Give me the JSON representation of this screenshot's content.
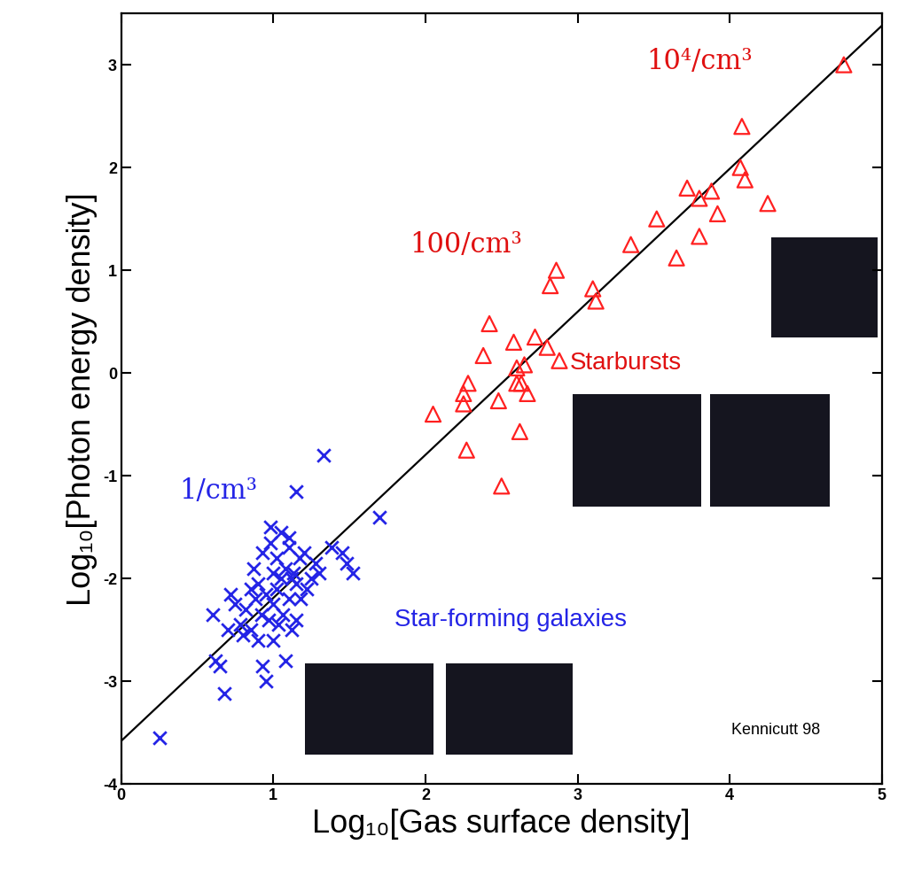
{
  "chart_data": {
    "type": "scatter",
    "x_label": "Log₁₀[Gas surface density]",
    "y_label": "Log₁₀[Photon energy density]",
    "xlim": [
      0,
      5
    ],
    "ylim": [
      -4,
      3.5
    ],
    "xticks": [
      0,
      1,
      2,
      3,
      4,
      5
    ],
    "yticks": [
      -4,
      -3,
      -2,
      -1,
      0,
      1,
      2,
      3
    ],
    "grid": false,
    "series": [
      {
        "name": "Star-forming galaxies",
        "color": "#2424e6",
        "marker": "x",
        "x": [
          0.25,
          0.6,
          0.62,
          0.65,
          0.68,
          0.7,
          0.72,
          0.75,
          0.78,
          0.8,
          0.82,
          0.85,
          0.85,
          0.87,
          0.88,
          0.9,
          0.9,
          0.92,
          0.93,
          0.93,
          0.95,
          0.95,
          0.97,
          0.98,
          1.0,
          1.0,
          1.0,
          1.02,
          1.02,
          1.03,
          1.05,
          1.05,
          1.06,
          1.08,
          1.08,
          1.1,
          1.1,
          1.12,
          1.13,
          1.15,
          1.15,
          1.15,
          1.17,
          1.18,
          1.2,
          1.22,
          1.25,
          1.28,
          1.3,
          1.33,
          1.38,
          1.45,
          1.48,
          1.52,
          1.7,
          1.1,
          0.98,
          1.12
        ],
        "values": [
          -3.55,
          -2.35,
          -2.8,
          -2.85,
          -3.12,
          -2.5,
          -2.15,
          -2.25,
          -2.45,
          -2.55,
          -2.3,
          -2.1,
          -2.5,
          -1.9,
          -2.2,
          -2.6,
          -2.05,
          -2.35,
          -1.75,
          -2.85,
          -2.15,
          -3.0,
          -2.4,
          -1.65,
          -1.95,
          -2.25,
          -2.6,
          -1.8,
          -2.1,
          -2.45,
          -1.55,
          -2.0,
          -2.35,
          -1.9,
          -2.8,
          -2.2,
          -1.7,
          -2.5,
          -1.95,
          -1.15,
          -2.05,
          -2.4,
          -1.8,
          -2.2,
          -1.75,
          -2.1,
          -2.0,
          -1.85,
          -1.95,
          -0.8,
          -1.7,
          -1.75,
          -1.85,
          -1.95,
          -1.4,
          -1.6,
          -1.5,
          -2.0
        ]
      },
      {
        "name": "Starbursts",
        "color": "#ff2020",
        "marker": "^",
        "x": [
          2.05,
          2.25,
          2.25,
          2.28,
          2.27,
          2.38,
          2.42,
          2.48,
          2.5,
          2.58,
          2.6,
          2.6,
          2.62,
          2.63,
          2.65,
          2.67,
          2.72,
          2.8,
          2.82,
          2.86,
          2.88,
          3.1,
          3.12,
          3.35,
          3.52,
          3.65,
          3.72,
          3.8,
          3.8,
          3.88,
          3.92,
          4.07,
          4.08,
          4.1,
          4.25,
          4.75
        ],
        "values": [
          -0.4,
          -0.2,
          -0.3,
          -0.1,
          -0.75,
          0.17,
          0.48,
          -0.27,
          -1.1,
          0.3,
          0.05,
          -0.1,
          -0.57,
          -0.1,
          0.08,
          -0.2,
          0.35,
          0.25,
          0.85,
          1.0,
          0.12,
          0.82,
          0.7,
          1.25,
          1.5,
          1.12,
          1.8,
          1.7,
          1.33,
          1.77,
          1.55,
          2.0,
          2.4,
          1.88,
          1.65,
          3.0
        ]
      }
    ],
    "fit_line": {
      "x": [
        0,
        5
      ],
      "values": [
        -3.58,
        3.38
      ],
      "color": "#000000"
    },
    "annotations": [
      {
        "text": "10⁴/cm³",
        "color": "#e01010"
      },
      {
        "text": "100/cm³",
        "color": "#e01010"
      },
      {
        "text": "1/cm³",
        "color": "#2424e6"
      },
      {
        "text": "Starbursts",
        "color": "#e01010"
      },
      {
        "text": "Star-forming galaxies",
        "color": "#2424e6"
      },
      {
        "text": "Kennicutt 98",
        "color": "#000000"
      }
    ]
  }
}
